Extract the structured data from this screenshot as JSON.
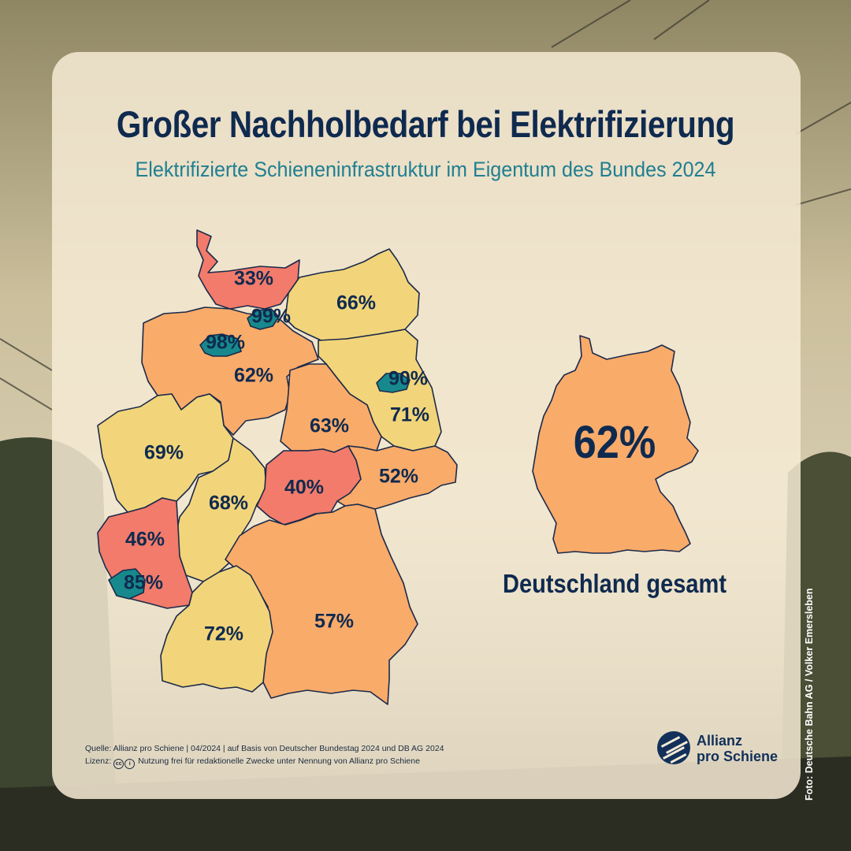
{
  "title": "Großer Nachholbedarf bei Elektrifizierung",
  "subtitle": "Elektrifizierte Schieneninfrastruktur im Eigentum des Bundes 2024",
  "colors": {
    "red": "#f27b6b",
    "orange": "#f9ab6a",
    "yellow": "#f2d57a",
    "teal": "#17898c",
    "navy": "#0f2a4f",
    "accent": "#1f7f91"
  },
  "regions": [
    {
      "label": "33%",
      "value": 33
    },
    {
      "label": "99%",
      "value": 99
    },
    {
      "label": "66%",
      "value": 66
    },
    {
      "label": "98%",
      "value": 98
    },
    {
      "label": "62%",
      "value": 62
    },
    {
      "label": "90%",
      "value": 90
    },
    {
      "label": "63%",
      "value": 63
    },
    {
      "label": "71%",
      "value": 71
    },
    {
      "label": "69%",
      "value": 69
    },
    {
      "label": "68%",
      "value": 68
    },
    {
      "label": "40%",
      "value": 40
    },
    {
      "label": "52%",
      "value": 52
    },
    {
      "label": "46%",
      "value": 46
    },
    {
      "label": "85%",
      "value": 85
    },
    {
      "label": "72%",
      "value": 72
    },
    {
      "label": "57%",
      "value": 57
    }
  ],
  "total": {
    "value": "62%",
    "label": "Deutschland gesamt"
  },
  "source": {
    "line1": "Quelle: Allianz pro Schiene | 04/2024 | auf Basis von Deutscher Bundestag 2024 und DB AG 2024",
    "license_prefix": "Lizenz:",
    "license_text": "Nutzung frei für redaktionelle Zwecke unter Nennung von Allianz pro Schiene"
  },
  "logo": {
    "line1": "Allianz",
    "line2": "pro Schiene"
  },
  "photo_credit": "Foto: Deutsche Bahn AG / Volker Emersleben"
}
